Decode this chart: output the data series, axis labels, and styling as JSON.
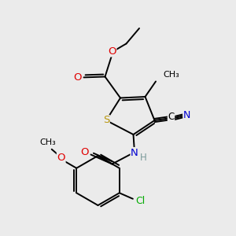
{
  "bg_color": "#ebebeb",
  "bond_color": "#000000",
  "line_width": 1.4,
  "atom_colors": {
    "S": "#b8960c",
    "O": "#e00000",
    "N": "#0000d0",
    "C": "#000000",
    "Cl": "#00aa00",
    "H": "#7a9a9a"
  },
  "font_size": 8.5,
  "title": ""
}
